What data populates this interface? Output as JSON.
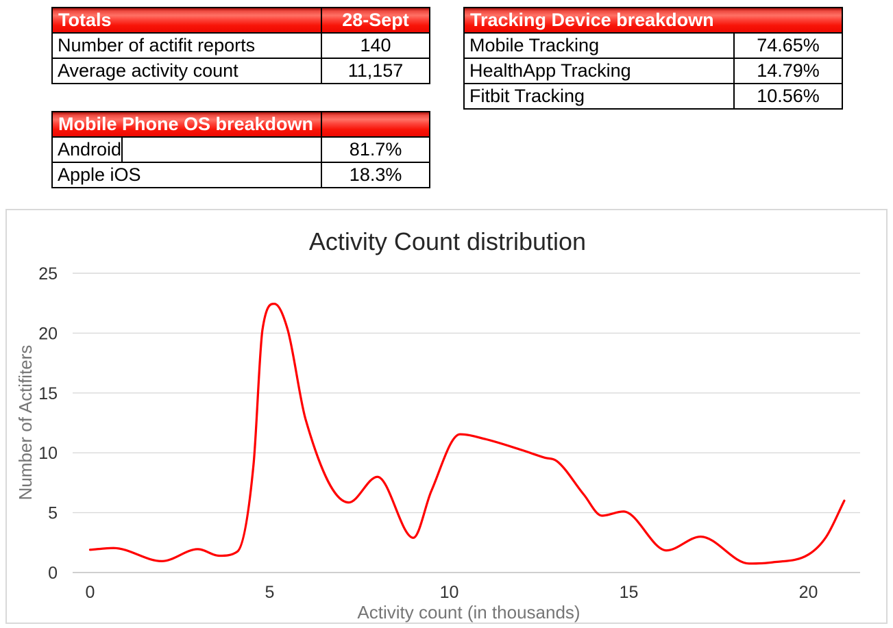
{
  "tables": {
    "totals": {
      "header": {
        "label": "Totals",
        "value": "28-Sept"
      },
      "rows": [
        {
          "label": "Number of actifit reports",
          "value": "140"
        },
        {
          "label": "Average activity count",
          "value": "11,157"
        }
      ]
    },
    "tracking": {
      "header": {
        "label": "Tracking Device breakdown"
      },
      "rows": [
        {
          "label": "Mobile Tracking",
          "value": "74.65%"
        },
        {
          "label": "HealthApp Tracking",
          "value": "14.79%"
        },
        {
          "label": "Fitbit Tracking",
          "value": "10.56%"
        }
      ]
    },
    "os": {
      "header": {
        "label": "Mobile Phone OS breakdown"
      },
      "rows": [
        {
          "label": "Android",
          "value": "81.7%"
        },
        {
          "label": "Apple iOS",
          "value": "18.3%"
        }
      ]
    }
  },
  "colors": {
    "header_red": "#f20d05",
    "line": "#ff0000",
    "grid": "#d9d9d9",
    "axis": "#bfbfbf"
  },
  "chart_data": {
    "type": "line",
    "title": "Activity Count distribution",
    "xlabel": "Activity count (in thousands)",
    "ylabel": "Number of Actifiters",
    "xlim": [
      0,
      21
    ],
    "ylim": [
      0,
      25
    ],
    "xticks": [
      0,
      5,
      10,
      15,
      20
    ],
    "yticks": [
      0,
      5,
      10,
      15,
      20,
      25
    ],
    "grid": true,
    "smooth": true,
    "series": [
      {
        "name": "Activity Count distribution",
        "x": [
          0,
          0.65,
          2,
          3,
          3.6,
          4.1,
          4.55,
          4.8,
          5.13,
          5.5,
          6,
          7.2,
          8,
          9,
          9.5,
          10.3,
          11,
          12,
          12.65,
          13,
          13.75,
          14.25,
          14.85,
          16.05,
          17,
          18.35,
          19,
          20,
          20.5,
          21
        ],
        "y": [
          1.9,
          2.05,
          0.95,
          1.95,
          1.4,
          1.75,
          9,
          20.3,
          22.45,
          20.3,
          12.8,
          5.85,
          8,
          2.9,
          6.8,
          11.55,
          11.15,
          10.25,
          9.6,
          9.3,
          6.5,
          4.75,
          5.1,
          1.85,
          3,
          0.75,
          0.85,
          1.5,
          3,
          6
        ]
      }
    ]
  }
}
